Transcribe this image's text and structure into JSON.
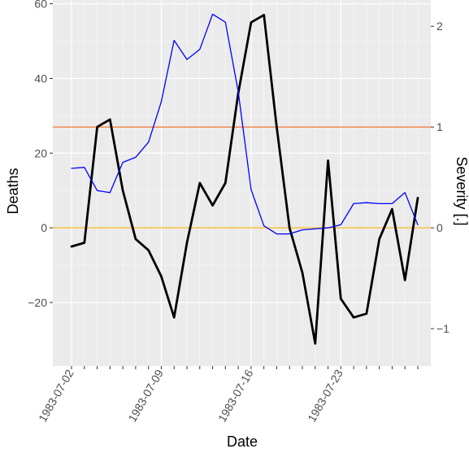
{
  "chart_data": {
    "type": "line",
    "xlabel": "Date",
    "ylabel_left": "Deaths",
    "ylabel_right": "Severity [.]",
    "x": [
      "1983-07-02",
      "1983-07-03",
      "1983-07-04",
      "1983-07-05",
      "1983-07-06",
      "1983-07-07",
      "1983-07-08",
      "1983-07-09",
      "1983-07-10",
      "1983-07-11",
      "1983-07-12",
      "1983-07-13",
      "1983-07-14",
      "1983-07-15",
      "1983-07-16",
      "1983-07-17",
      "1983-07-18",
      "1983-07-19",
      "1983-07-20",
      "1983-07-21",
      "1983-07-22",
      "1983-07-23",
      "1983-07-24",
      "1983-07-25",
      "1983-07-26",
      "1983-07-27",
      "1983-07-28",
      "1983-07-29"
    ],
    "x_ticks": [
      "1983-07-02",
      "1983-07-09",
      "1983-07-16",
      "1983-07-23"
    ],
    "y_left_ticks": [
      -20,
      0,
      20,
      40,
      60
    ],
    "y_right_ticks": [
      -1,
      0,
      1,
      2
    ],
    "y_left_range": [
      -37,
      61
    ],
    "y_right_range": [
      -1.37,
      2.26
    ],
    "grid": true,
    "series": [
      {
        "axis": "left",
        "color": "#000000",
        "values": [
          -5,
          -4,
          27,
          29,
          10,
          -3,
          -6,
          -13,
          -24,
          -4,
          12,
          6,
          12,
          36,
          55,
          57,
          27,
          0,
          -12,
          -31,
          18,
          -19,
          -24,
          -23,
          -3,
          5,
          -14,
          8
        ]
      },
      {
        "axis": "right",
        "color": "#0000ff",
        "values": [
          0.59,
          0.6,
          0.37,
          0.35,
          0.65,
          0.7,
          0.85,
          1.25,
          1.86,
          1.67,
          1.77,
          2.12,
          2.04,
          1.35,
          0.38,
          0.02,
          -0.06,
          -0.06,
          -0.02,
          -0.01,
          0.0,
          0.03,
          0.24,
          0.25,
          0.24,
          0.24,
          0.35,
          0.03
        ]
      }
    ],
    "hlines": [
      {
        "axis": "right",
        "value": 1,
        "color": "#f08a52"
      },
      {
        "axis": "right",
        "value": 0,
        "color": "#f5c242"
      }
    ]
  }
}
